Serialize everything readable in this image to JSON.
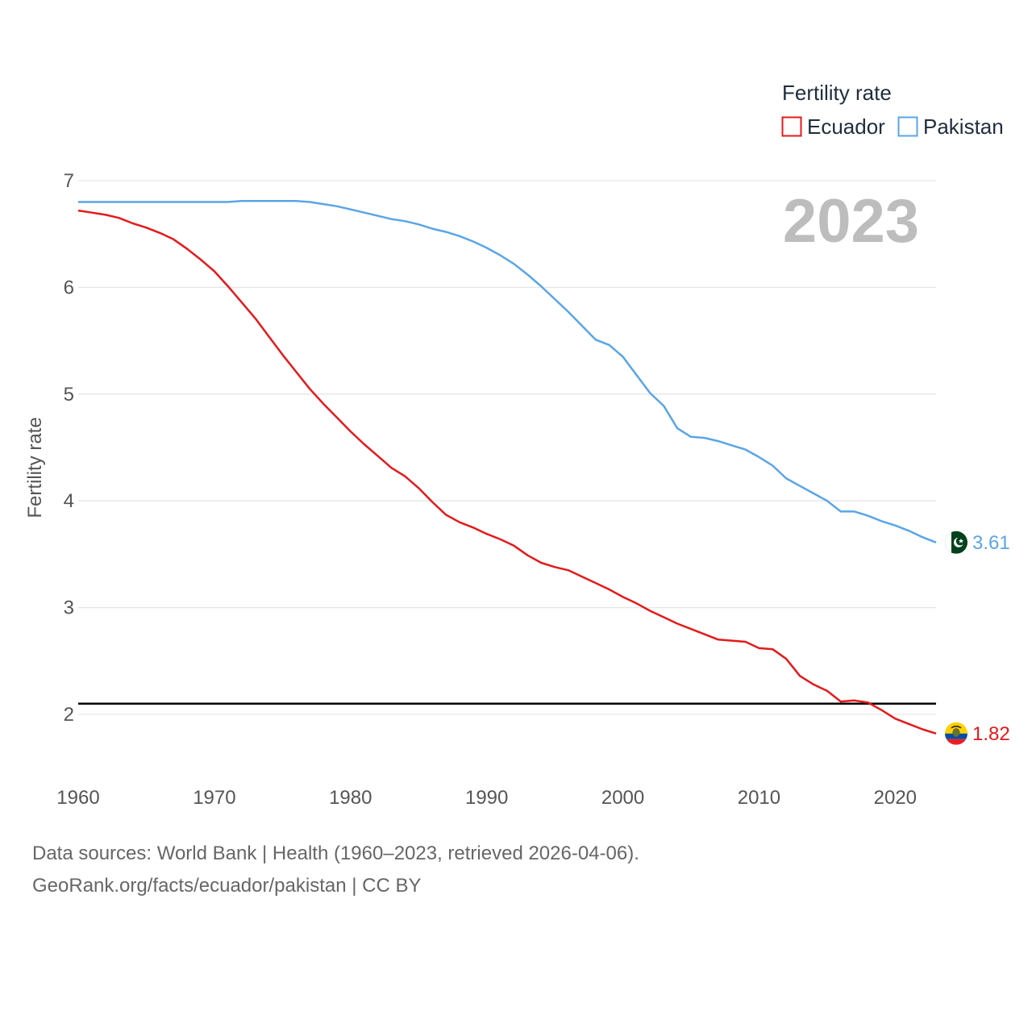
{
  "chart_data": {
    "type": "line",
    "title": "",
    "legend_title": "Fertility rate",
    "legend_position": "top-right",
    "year_label": "2023",
    "xlabel": "",
    "ylabel": "Fertility rate",
    "xlim": [
      1960,
      2023
    ],
    "ylim": [
      1.4,
      7.2
    ],
    "x_ticks": [
      1960,
      1970,
      1980,
      1990,
      2000,
      2010,
      2020
    ],
    "x_tick_labels": [
      "1960",
      "1970",
      "1980",
      "1990",
      "2000",
      "2010",
      "2020"
    ],
    "y_ticks": [
      2,
      3,
      4,
      5,
      6,
      7
    ],
    "y_tick_labels": [
      "2",
      "3",
      "4",
      "5",
      "6",
      "7"
    ],
    "grid": true,
    "reference_line": {
      "y": 2.1,
      "color": "#000000"
    },
    "x": [
      1960,
      1961,
      1962,
      1963,
      1964,
      1965,
      1966,
      1967,
      1968,
      1969,
      1970,
      1971,
      1972,
      1973,
      1974,
      1975,
      1976,
      1977,
      1978,
      1979,
      1980,
      1981,
      1982,
      1983,
      1984,
      1985,
      1986,
      1987,
      1988,
      1989,
      1990,
      1991,
      1992,
      1993,
      1994,
      1995,
      1996,
      1997,
      1998,
      1999,
      2000,
      2001,
      2002,
      2003,
      2004,
      2005,
      2006,
      2007,
      2008,
      2009,
      2010,
      2011,
      2012,
      2013,
      2014,
      2015,
      2016,
      2017,
      2018,
      2019,
      2020,
      2021,
      2022,
      2023
    ],
    "series": [
      {
        "name": "Ecuador",
        "color": "#e41a1c",
        "end_label": "1.82",
        "values": [
          6.72,
          6.7,
          6.68,
          6.65,
          6.6,
          6.56,
          6.51,
          6.45,
          6.36,
          6.26,
          6.15,
          6.01,
          5.86,
          5.71,
          5.54,
          5.37,
          5.21,
          5.05,
          4.91,
          4.78,
          4.65,
          4.53,
          4.42,
          4.31,
          4.23,
          4.12,
          3.99,
          3.87,
          3.8,
          3.75,
          3.69,
          3.64,
          3.58,
          3.49,
          3.42,
          3.38,
          3.35,
          3.29,
          3.23,
          3.17,
          3.1,
          3.04,
          2.97,
          2.91,
          2.85,
          2.8,
          2.75,
          2.7,
          2.69,
          2.68,
          2.62,
          2.61,
          2.52,
          2.36,
          2.28,
          2.22,
          2.12,
          2.13,
          2.11,
          2.04,
          1.96,
          1.91,
          1.86,
          1.82
        ]
      },
      {
        "name": "Pakistan",
        "color": "#5aa5e6",
        "end_label": "3.61",
        "values": [
          6.8,
          6.8,
          6.8,
          6.8,
          6.8,
          6.8,
          6.8,
          6.8,
          6.8,
          6.8,
          6.8,
          6.8,
          6.81,
          6.81,
          6.81,
          6.81,
          6.81,
          6.8,
          6.78,
          6.76,
          6.73,
          6.7,
          6.67,
          6.64,
          6.62,
          6.59,
          6.55,
          6.52,
          6.48,
          6.43,
          6.37,
          6.3,
          6.22,
          6.12,
          6.01,
          5.89,
          5.77,
          5.64,
          5.51,
          5.46,
          5.35,
          5.18,
          5.01,
          4.89,
          4.68,
          4.6,
          4.59,
          4.56,
          4.52,
          4.48,
          4.41,
          4.33,
          4.21,
          4.14,
          4.07,
          4.0,
          3.9,
          3.9,
          3.86,
          3.81,
          3.77,
          3.72,
          3.66,
          3.61
        ]
      }
    ]
  },
  "footer": {
    "line1": "Data sources: World Bank | Health (1960–2023, retrieved 2026-04-06).",
    "line2": "GeoRank.org/facts/ecuador/pakistan | CC BY"
  }
}
